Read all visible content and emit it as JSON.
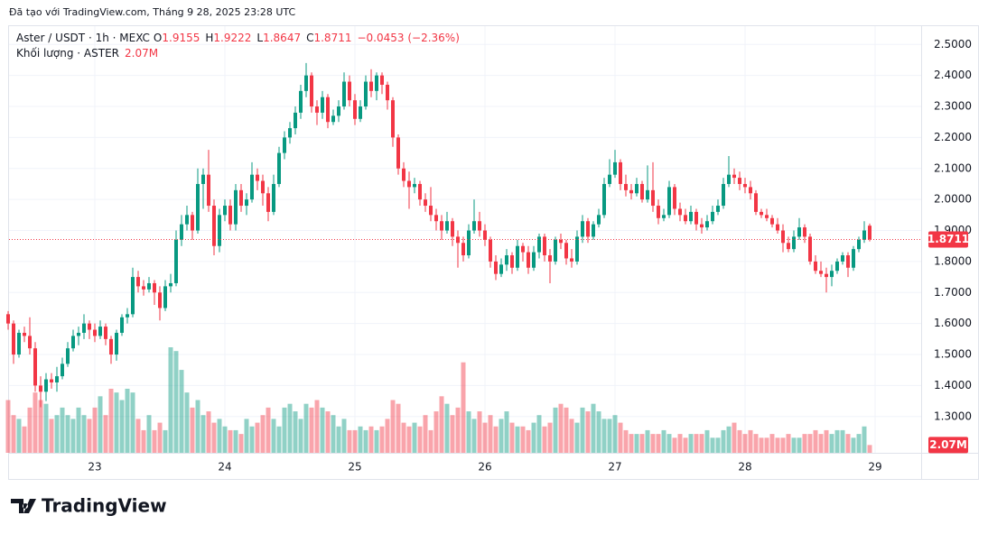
{
  "attribution": "Đã tạo với TradingView.com, Tháng 9 28, 2025 23:28 UTC",
  "logo": "TradingView",
  "chart_data": {
    "type": "candlestick",
    "symbol": "Aster / USDT · 1h · MEXC",
    "ohlc_letters": [
      "O",
      "H",
      "L",
      "C"
    ],
    "change": "−0.0453 (−2.36%)",
    "volume_title": "Khối lượng · ASTER",
    "up_color": "#089981",
    "down_color": "#f23645",
    "ylim": [
      1.183,
      2.559
    ],
    "yticks": [
      {
        "value": 1.3,
        "label": "1.3000"
      },
      {
        "value": 1.4,
        "label": "1.4000"
      },
      {
        "value": 1.5,
        "label": "1.5000"
      },
      {
        "value": 1.6,
        "label": "1.6000"
      },
      {
        "value": 1.7,
        "label": "1.7000"
      },
      {
        "value": 1.8,
        "label": "1.8000"
      },
      {
        "value": 1.9,
        "label": "1.9000"
      },
      {
        "value": 2.0,
        "label": "2.0000"
      },
      {
        "value": 2.1,
        "label": "2.1000"
      },
      {
        "value": 2.2,
        "label": "2.2000"
      },
      {
        "value": 2.3,
        "label": "2.3000"
      },
      {
        "value": 2.4,
        "label": "2.4000"
      },
      {
        "value": 2.5,
        "label": "2.5000"
      }
    ],
    "xtick_labels": [
      "23",
      "24",
      "25",
      "26",
      "27",
      "28",
      "29"
    ],
    "ohlc": [
      [
        1.63,
        1.64,
        1.58,
        1.6
      ],
      [
        1.6,
        1.61,
        1.47,
        1.5
      ],
      [
        1.5,
        1.58,
        1.49,
        1.57
      ],
      [
        1.57,
        1.59,
        1.54,
        1.56
      ],
      [
        1.56,
        1.62,
        1.5,
        1.52
      ],
      [
        1.52,
        1.54,
        1.38,
        1.4
      ],
      [
        1.4,
        1.43,
        1.33,
        1.38
      ],
      [
        1.38,
        1.44,
        1.35,
        1.42
      ],
      [
        1.42,
        1.44,
        1.39,
        1.41
      ],
      [
        1.41,
        1.46,
        1.38,
        1.43
      ],
      [
        1.43,
        1.49,
        1.42,
        1.47
      ],
      [
        1.47,
        1.54,
        1.46,
        1.52
      ],
      [
        1.52,
        1.58,
        1.51,
        1.56
      ],
      [
        1.56,
        1.59,
        1.53,
        1.57
      ],
      [
        1.57,
        1.63,
        1.55,
        1.6
      ],
      [
        1.6,
        1.61,
        1.55,
        1.58
      ],
      [
        1.58,
        1.6,
        1.54,
        1.56
      ],
      [
        1.56,
        1.61,
        1.55,
        1.59
      ],
      [
        1.59,
        1.6,
        1.53,
        1.55
      ],
      [
        1.55,
        1.56,
        1.47,
        1.5
      ],
      [
        1.5,
        1.58,
        1.48,
        1.57
      ],
      [
        1.57,
        1.63,
        1.56,
        1.62
      ],
      [
        1.62,
        1.65,
        1.6,
        1.63
      ],
      [
        1.63,
        1.78,
        1.62,
        1.75
      ],
      [
        1.75,
        1.77,
        1.7,
        1.72
      ],
      [
        1.72,
        1.74,
        1.69,
        1.71
      ],
      [
        1.71,
        1.75,
        1.7,
        1.73
      ],
      [
        1.73,
        1.74,
        1.66,
        1.7
      ],
      [
        1.7,
        1.72,
        1.61,
        1.65
      ],
      [
        1.65,
        1.74,
        1.64,
        1.72
      ],
      [
        1.72,
        1.76,
        1.7,
        1.73
      ],
      [
        1.73,
        1.9,
        1.72,
        1.87
      ],
      [
        1.87,
        1.95,
        1.85,
        1.92
      ],
      [
        1.92,
        1.98,
        1.9,
        1.95
      ],
      [
        1.95,
        1.96,
        1.87,
        1.9
      ],
      [
        1.9,
        2.1,
        1.89,
        2.05
      ],
      [
        2.05,
        2.1,
        1.97,
        2.08
      ],
      [
        2.08,
        2.16,
        1.96,
        1.98
      ],
      [
        1.98,
        2.0,
        1.82,
        1.85
      ],
      [
        1.85,
        1.97,
        1.83,
        1.95
      ],
      [
        1.95,
        2.0,
        1.93,
        1.98
      ],
      [
        1.98,
        2.0,
        1.9,
        1.92
      ],
      [
        1.92,
        2.05,
        1.9,
        2.03
      ],
      [
        2.03,
        2.05,
        1.96,
        1.98
      ],
      [
        1.98,
        2.02,
        1.95,
        2.0
      ],
      [
        2.0,
        2.12,
        1.99,
        2.08
      ],
      [
        2.08,
        2.1,
        2.03,
        2.06
      ],
      [
        2.06,
        2.08,
        1.98,
        2.02
      ],
      [
        2.02,
        2.04,
        1.93,
        1.96
      ],
      [
        1.96,
        2.08,
        1.95,
        2.05
      ],
      [
        2.05,
        2.17,
        2.04,
        2.15
      ],
      [
        2.15,
        2.22,
        2.13,
        2.2
      ],
      [
        2.2,
        2.25,
        2.18,
        2.23
      ],
      [
        2.23,
        2.3,
        2.21,
        2.28
      ],
      [
        2.28,
        2.37,
        2.26,
        2.35
      ],
      [
        2.35,
        2.44,
        2.33,
        2.4
      ],
      [
        2.4,
        2.41,
        2.28,
        2.3
      ],
      [
        2.3,
        2.32,
        2.24,
        2.28
      ],
      [
        2.28,
        2.35,
        2.26,
        2.33
      ],
      [
        2.33,
        2.34,
        2.23,
        2.25
      ],
      [
        2.25,
        2.29,
        2.24,
        2.27
      ],
      [
        2.27,
        2.32,
        2.25,
        2.3
      ],
      [
        2.3,
        2.41,
        2.29,
        2.38
      ],
      [
        2.38,
        2.4,
        2.3,
        2.32
      ],
      [
        2.32,
        2.34,
        2.24,
        2.26
      ],
      [
        2.26,
        2.32,
        2.25,
        2.3
      ],
      [
        2.3,
        2.4,
        2.29,
        2.38
      ],
      [
        2.38,
        2.42,
        2.33,
        2.35
      ],
      [
        2.35,
        2.41,
        2.32,
        2.4
      ],
      [
        2.4,
        2.41,
        2.34,
        2.37
      ],
      [
        2.37,
        2.38,
        2.29,
        2.32
      ],
      [
        2.32,
        2.33,
        2.17,
        2.2
      ],
      [
        2.2,
        2.21,
        2.08,
        2.1
      ],
      [
        2.1,
        2.12,
        2.04,
        2.06
      ],
      [
        2.06,
        2.09,
        1.97,
        2.04
      ],
      [
        2.04,
        2.07,
        2.02,
        2.05
      ],
      [
        2.05,
        2.06,
        1.98,
        2.0
      ],
      [
        2.0,
        2.02,
        1.96,
        1.98
      ],
      [
        1.98,
        2.04,
        1.93,
        1.95
      ],
      [
        1.95,
        1.97,
        1.9,
        1.93
      ],
      [
        1.93,
        1.95,
        1.87,
        1.9
      ],
      [
        1.9,
        1.96,
        1.89,
        1.93
      ],
      [
        1.93,
        1.94,
        1.85,
        1.88
      ],
      [
        1.88,
        1.9,
        1.78,
        1.86
      ],
      [
        1.86,
        1.88,
        1.8,
        1.82
      ],
      [
        1.82,
        1.92,
        1.81,
        1.9
      ],
      [
        1.9,
        2.0,
        1.89,
        1.93
      ],
      [
        1.93,
        1.96,
        1.88,
        1.9
      ],
      [
        1.9,
        1.92,
        1.85,
        1.87
      ],
      [
        1.87,
        1.88,
        1.78,
        1.8
      ],
      [
        1.8,
        1.82,
        1.74,
        1.76
      ],
      [
        1.76,
        1.81,
        1.75,
        1.79
      ],
      [
        1.79,
        1.84,
        1.77,
        1.82
      ],
      [
        1.82,
        1.83,
        1.76,
        1.78
      ],
      [
        1.78,
        1.87,
        1.77,
        1.85
      ],
      [
        1.85,
        1.86,
        1.8,
        1.83
      ],
      [
        1.83,
        1.85,
        1.76,
        1.78
      ],
      [
        1.78,
        1.85,
        1.77,
        1.83
      ],
      [
        1.83,
        1.89,
        1.81,
        1.88
      ],
      [
        1.88,
        1.89,
        1.8,
        1.82
      ],
      [
        1.82,
        1.84,
        1.73,
        1.8
      ],
      [
        1.8,
        1.88,
        1.79,
        1.87
      ],
      [
        1.87,
        1.89,
        1.84,
        1.86
      ],
      [
        1.86,
        1.87,
        1.79,
        1.81
      ],
      [
        1.81,
        1.84,
        1.78,
        1.8
      ],
      [
        1.8,
        1.9,
        1.79,
        1.88
      ],
      [
        1.88,
        1.95,
        1.86,
        1.93
      ],
      [
        1.93,
        1.94,
        1.86,
        1.88
      ],
      [
        1.88,
        1.93,
        1.87,
        1.92
      ],
      [
        1.92,
        1.97,
        1.91,
        1.95
      ],
      [
        1.95,
        2.07,
        1.94,
        2.05
      ],
      [
        2.05,
        2.13,
        2.04,
        2.08
      ],
      [
        2.08,
        2.16,
        2.07,
        2.12
      ],
      [
        2.12,
        2.13,
        2.03,
        2.05
      ],
      [
        2.05,
        2.08,
        2.01,
        2.03
      ],
      [
        2.03,
        2.05,
        2.0,
        2.02
      ],
      [
        2.02,
        2.07,
        2.01,
        2.05
      ],
      [
        2.05,
        2.06,
        1.99,
        2.0
      ],
      [
        2.0,
        2.11,
        1.99,
        2.03
      ],
      [
        2.03,
        2.12,
        1.96,
        1.98
      ],
      [
        1.98,
        2.0,
        1.92,
        1.94
      ],
      [
        1.94,
        1.97,
        1.93,
        1.95
      ],
      [
        1.95,
        2.06,
        1.94,
        2.04
      ],
      [
        2.04,
        2.05,
        1.95,
        1.97
      ],
      [
        1.97,
        1.99,
        1.93,
        1.95
      ],
      [
        1.95,
        1.97,
        1.92,
        1.93
      ],
      [
        1.93,
        1.98,
        1.92,
        1.96
      ],
      [
        1.96,
        1.97,
        1.9,
        1.92
      ],
      [
        1.92,
        1.94,
        1.89,
        1.91
      ],
      [
        1.91,
        1.95,
        1.9,
        1.93
      ],
      [
        1.93,
        1.98,
        1.92,
        1.96
      ],
      [
        1.96,
        2.0,
        1.95,
        1.98
      ],
      [
        1.98,
        2.07,
        1.97,
        2.05
      ],
      [
        2.05,
        2.14,
        2.04,
        2.08
      ],
      [
        2.08,
        2.1,
        2.05,
        2.07
      ],
      [
        2.07,
        2.09,
        2.03,
        2.05
      ],
      [
        2.05,
        2.07,
        2.02,
        2.04
      ],
      [
        2.04,
        2.06,
        2.0,
        2.02
      ],
      [
        2.02,
        2.03,
        1.95,
        1.96
      ],
      [
        1.96,
        1.97,
        1.94,
        1.95
      ],
      [
        1.95,
        1.97,
        1.93,
        1.94
      ],
      [
        1.94,
        1.95,
        1.91,
        1.92
      ],
      [
        1.92,
        1.94,
        1.89,
        1.9
      ],
      [
        1.9,
        1.92,
        1.83,
        1.86
      ],
      [
        1.86,
        1.88,
        1.83,
        1.84
      ],
      [
        1.84,
        1.9,
        1.83,
        1.88
      ],
      [
        1.88,
        1.94,
        1.87,
        1.91
      ],
      [
        1.91,
        1.92,
        1.86,
        1.88
      ],
      [
        1.88,
        1.89,
        1.79,
        1.8
      ],
      [
        1.8,
        1.82,
        1.76,
        1.77
      ],
      [
        1.77,
        1.8,
        1.75,
        1.76
      ],
      [
        1.76,
        1.78,
        1.7,
        1.75
      ],
      [
        1.75,
        1.79,
        1.72,
        1.77
      ],
      [
        1.77,
        1.81,
        1.76,
        1.8
      ],
      [
        1.8,
        1.83,
        1.79,
        1.82
      ],
      [
        1.82,
        1.83,
        1.75,
        1.78
      ],
      [
        1.78,
        1.85,
        1.77,
        1.84
      ],
      [
        1.84,
        1.88,
        1.83,
        1.87
      ],
      [
        1.87,
        1.93,
        1.86,
        1.9
      ],
      [
        1.9155,
        1.9222,
        1.8647,
        1.8711
      ]
    ],
    "volume": [
      14,
      10,
      9,
      7,
      12,
      16,
      14,
      13,
      9,
      10,
      12,
      10,
      9,
      12,
      10,
      9,
      12,
      15,
      10,
      17,
      16,
      14,
      17,
      16,
      9,
      6,
      10,
      6,
      8,
      6,
      28,
      27,
      22,
      16,
      12,
      14,
      10,
      11,
      8,
      9,
      7,
      6,
      6,
      5,
      9,
      7,
      8,
      10,
      12,
      9,
      7,
      12,
      13,
      11,
      9,
      13,
      12,
      14,
      12,
      11,
      10,
      7,
      9,
      6,
      6,
      7,
      6,
      7,
      6,
      7,
      9,
      14,
      13,
      8,
      7,
      8,
      7,
      10,
      6,
      11,
      15,
      13,
      10,
      12,
      24,
      11,
      9,
      11,
      8,
      10,
      7,
      9,
      11,
      8,
      7,
      7,
      6,
      8,
      10,
      7,
      8,
      12,
      13,
      12,
      9,
      8,
      12,
      11,
      13,
      11,
      9,
      9,
      10,
      8,
      6,
      5,
      5,
      5,
      6,
      5,
      5,
      6,
      5,
      4,
      5,
      4,
      5,
      5,
      5,
      6,
      4,
      4,
      6,
      7,
      8,
      6,
      5,
      6,
      5,
      4,
      4,
      5,
      4,
      4,
      5,
      4,
      4,
      5,
      5,
      6,
      5,
      6,
      5,
      6,
      6,
      5,
      4,
      5,
      7,
      2.07
    ],
    "volume_labels": {
      "159": "2.07M"
    }
  }
}
